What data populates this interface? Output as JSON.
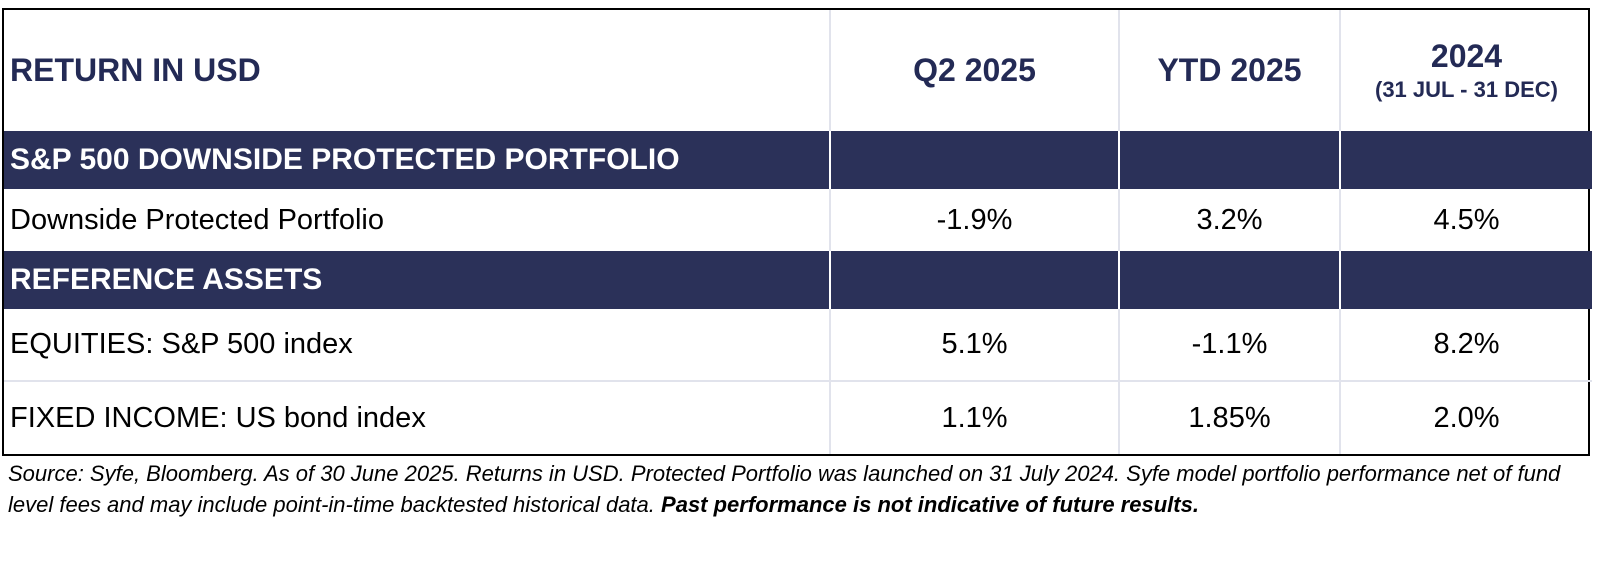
{
  "table": {
    "header": {
      "label": "RETURN IN USD",
      "col1": "Q2 2025",
      "col2": "YTD 2025",
      "col3": "2024",
      "col3_sub": "(31 JUL - 31 DEC)"
    },
    "sections": [
      {
        "title": "S&P 500 DOWNSIDE PROTECTED PORTFOLIO",
        "rows": [
          {
            "label": "Downside Protected Portfolio",
            "q2": "-1.9%",
            "ytd": "3.2%",
            "y2024": "4.5%"
          }
        ]
      },
      {
        "title": "REFERENCE ASSETS",
        "rows": [
          {
            "label": "EQUITIES: S&P 500 index",
            "q2": "5.1%",
            "ytd": "-1.1%",
            "y2024": "8.2%"
          },
          {
            "label": "FIXED INCOME: US bond index",
            "q2": "1.1%",
            "ytd": "1.85%",
            "y2024": "2.0%"
          }
        ]
      }
    ]
  },
  "footnote": {
    "text": "Source: Syfe, Bloomberg. As of 30 June 2025. Returns in USD. Protected Portfolio was launched on 31 July 2024. Syfe model portfolio performance net of fund level fees and may include point-in-time backtested historical data.",
    "bold_text": "Past performance is not indicative of future results."
  },
  "colors": {
    "header_text": "#232a55",
    "section_bg": "#2b3159",
    "grid_line": "#e1e3ec"
  }
}
